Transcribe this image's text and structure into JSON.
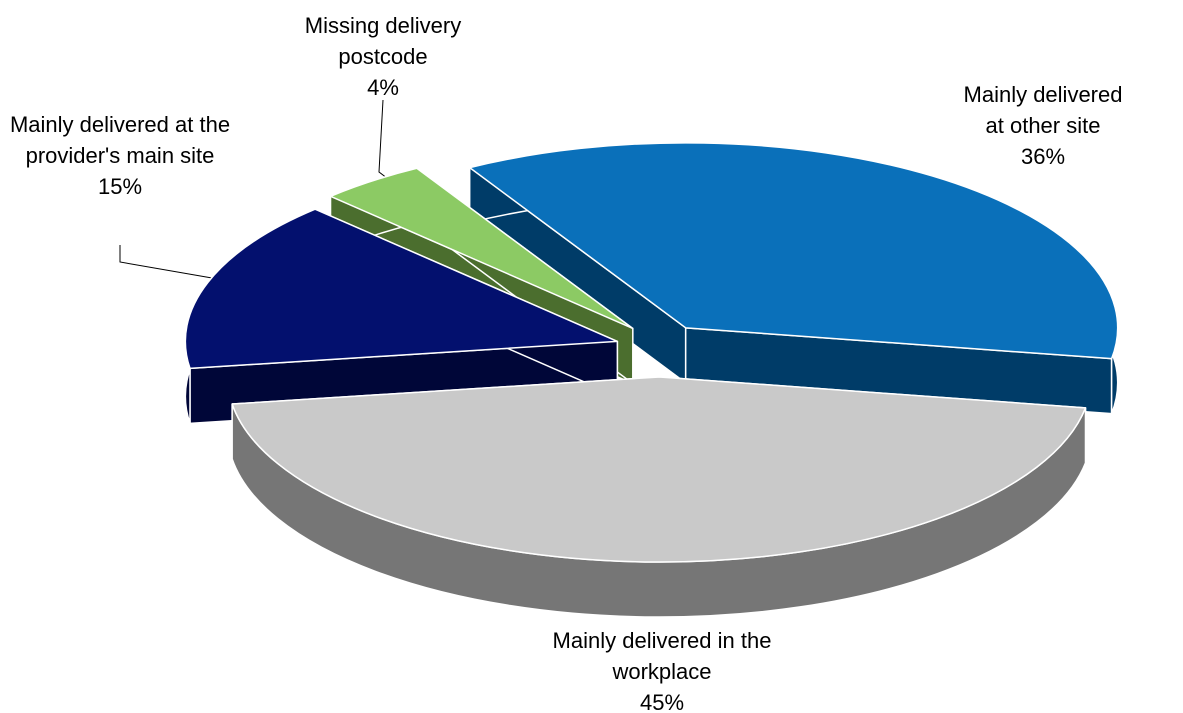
{
  "chart_data": {
    "type": "pie3d",
    "categories": [
      "Mainly delivered at other site",
      "Mainly delivered in the workplace",
      "Mainly delivered at the provider's main site",
      "Missing delivery postcode"
    ],
    "values": [
      36,
      45,
      15,
      4
    ],
    "value_labels": [
      "36%",
      "45%",
      "15%",
      "4%"
    ],
    "colors": [
      "#0a70ba",
      "#c9c9c9",
      "#03106e",
      "#8cca64"
    ],
    "side_colors": [
      "#003c68",
      "#767676",
      "#000638",
      "#4b6e2e"
    ],
    "exploded": true
  }
}
